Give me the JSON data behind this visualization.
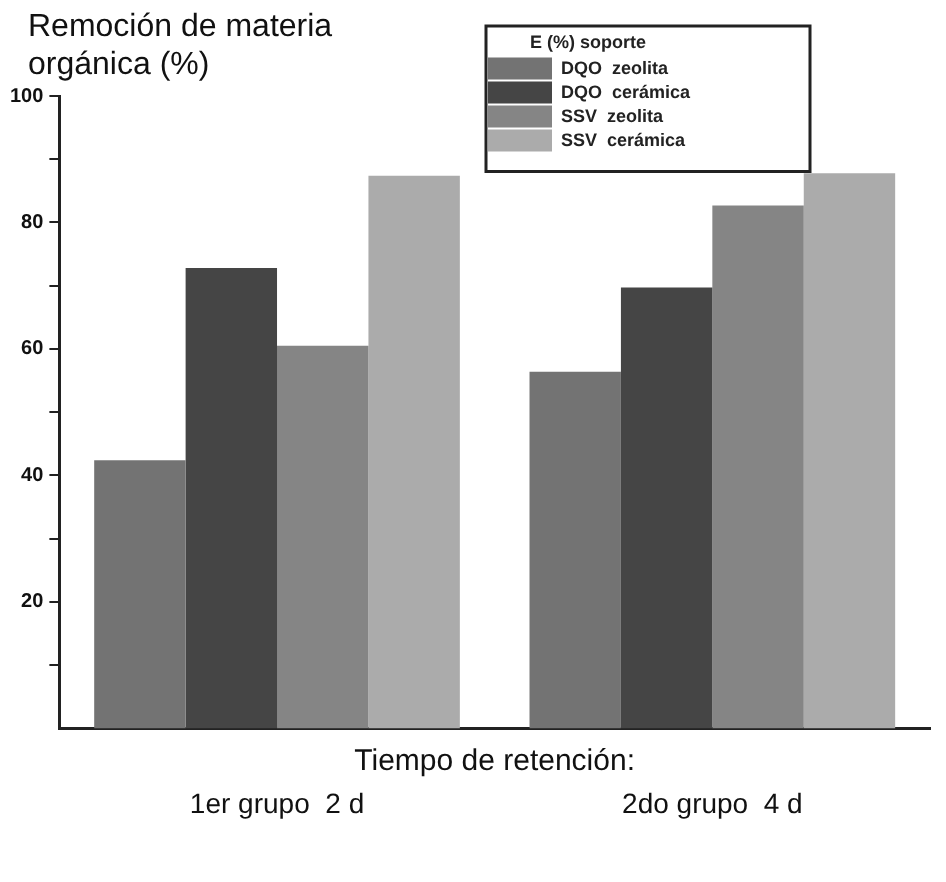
{
  "chart_data": {
    "type": "bar",
    "ylabel": "Remoción de materia orgánica  (%)",
    "xlabel": "Tiempo de retención:",
    "legend_title": "E (%) soporte",
    "legend": "top right",
    "categories": [
      "1er grupo  2 d",
      "2do grupo  4 d"
    ],
    "series": [
      {
        "name": "DQO  zeolita",
        "color": "#737373",
        "values": [
          42.4,
          56.4
        ]
      },
      {
        "name": "DQO  cerámica",
        "color": "#454545",
        "values": [
          72.8,
          69.7
        ]
      },
      {
        "name": "SSV  zeolita",
        "color": "#858585",
        "values": [
          60.5,
          82.7
        ]
      },
      {
        "name": "SSV  cerámica",
        "color": "#ababab",
        "values": [
          87.4,
          87.8
        ]
      }
    ],
    "ylim": [
      0,
      100
    ],
    "yticks": [
      {
        "value": 10,
        "label": null
      },
      20,
      {
        "value": 30,
        "label": null
      },
      40,
      {
        "value": 50,
        "label": null
      },
      60,
      {
        "value": 70,
        "label": null
      },
      80,
      {
        "value": 90,
        "label": null
      },
      100
    ],
    "grid": false
  }
}
